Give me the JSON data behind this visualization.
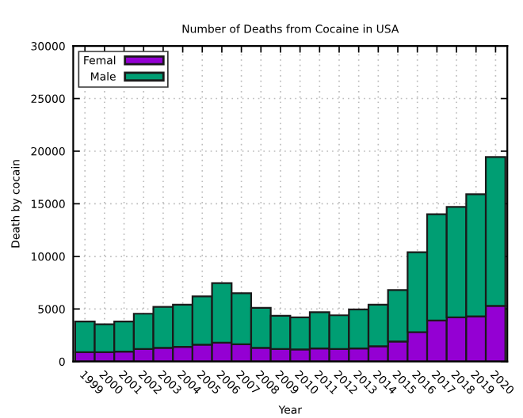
{
  "chart_data": {
    "type": "bar",
    "stacked": true,
    "title": "Number of Deaths from Cocaine in USA",
    "xlabel": "Year",
    "ylabel": "Death by cocain",
    "categories": [
      "1999",
      "2000",
      "2001",
      "2002",
      "2003",
      "2004",
      "2005",
      "2006",
      "2007",
      "2008",
      "2009",
      "2010",
      "2011",
      "2012",
      "2013",
      "2014",
      "2015",
      "2016",
      "2017",
      "2018",
      "2019",
      "2020"
    ],
    "series": [
      {
        "name": "Femal",
        "color": "#9400d3",
        "values": [
          900,
          900,
          950,
          1200,
          1300,
          1400,
          1600,
          1800,
          1650,
          1300,
          1200,
          1150,
          1250,
          1200,
          1250,
          1450,
          1900,
          2800,
          3900,
          4200,
          4300,
          5300
        ]
      },
      {
        "name": "Male",
        "color": "#009e73",
        "values": [
          2900,
          2650,
          2850,
          3350,
          3900,
          4000,
          4600,
          5650,
          4850,
          3800,
          3150,
          3050,
          3450,
          3200,
          3700,
          3950,
          4900,
          7600,
          10100,
          10500,
          11600,
          14150
        ]
      }
    ],
    "ylim": [
      0,
      30000
    ],
    "yticks": [
      0,
      5000,
      10000,
      15000,
      20000,
      25000,
      30000
    ],
    "grid": true,
    "legend": "top left"
  }
}
